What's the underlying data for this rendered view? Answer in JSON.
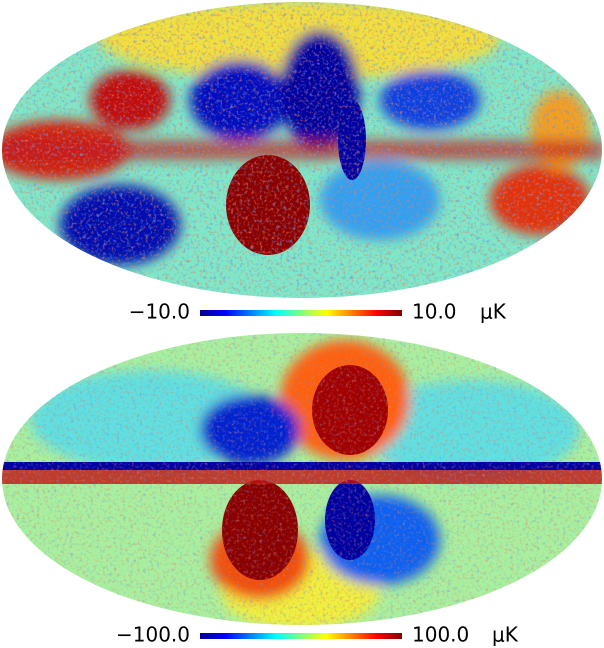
{
  "panels": [
    {
      "colorbar": {
        "min_label": "−10.0",
        "max_label": "10.0",
        "unit": "μK"
      }
    },
    {
      "colorbar": {
        "min_label": "−100.0",
        "max_label": "100.0",
        "unit": "μK"
      }
    }
  ]
}
